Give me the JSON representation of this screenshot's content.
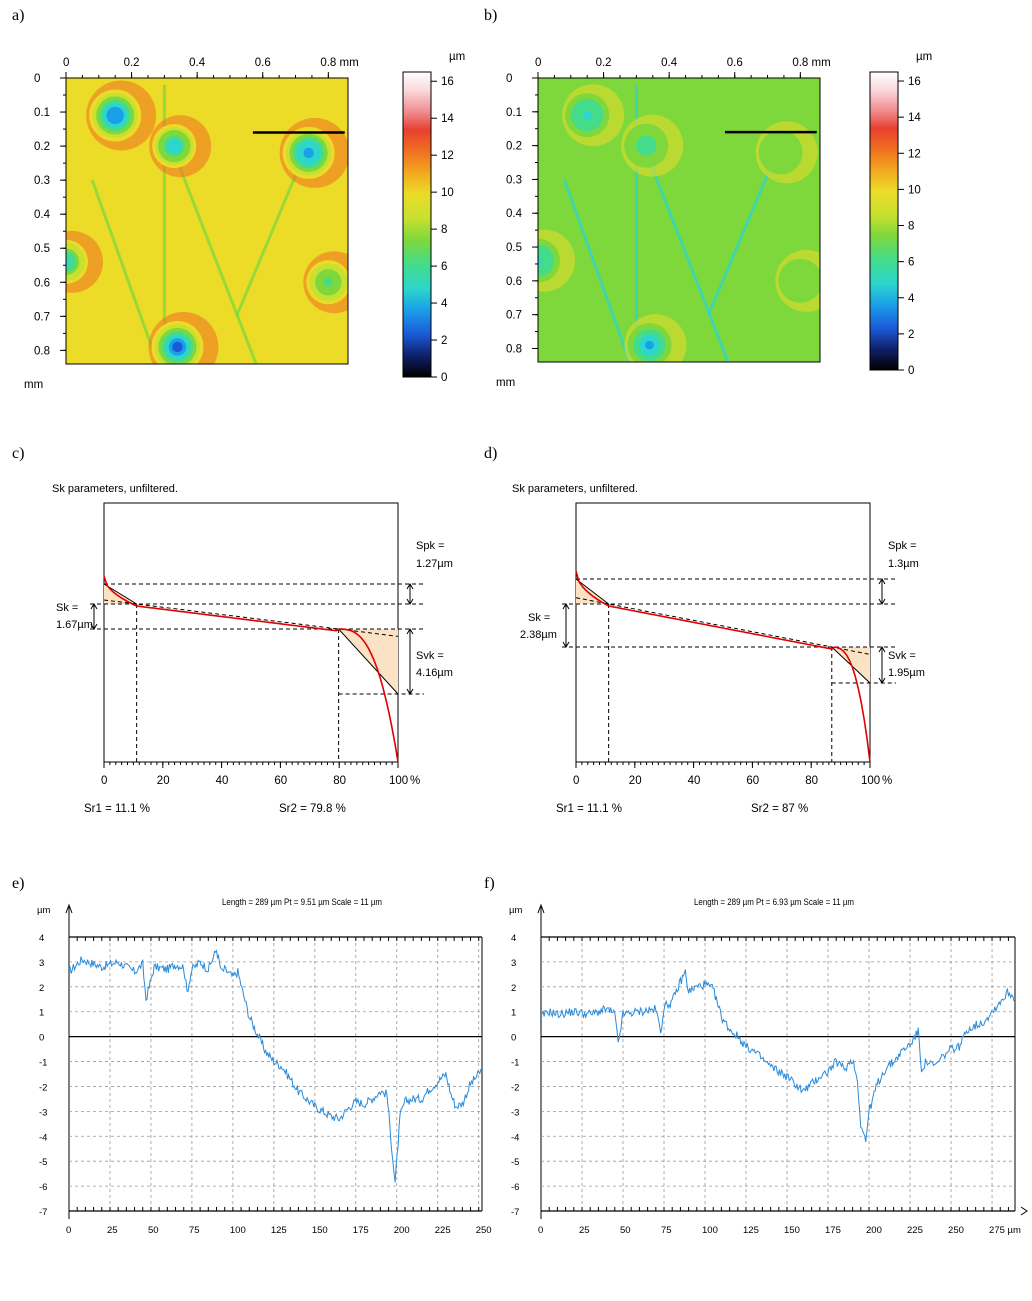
{
  "panel_labels": [
    "a)",
    "b)",
    "c)",
    "d)",
    "e)",
    "f)"
  ],
  "colors": {
    "map_colormap": [
      "#000000",
      "#10206a",
      "#1a5ad8",
      "#1aa0e8",
      "#2cd6cc",
      "#44dc8a",
      "#7ed83c",
      "#c8e030",
      "#ecdc28",
      "#f2b020",
      "#f07020",
      "#e84030",
      "#f08c90",
      "#fad8dc",
      "#ffffff"
    ],
    "profile_line": "#2a8ad8",
    "sk_curve": "#e00000",
    "sk_fill": "#fce2c4"
  },
  "chart_data": [
    {
      "id": "a",
      "type": "heatmap",
      "x_ticks": [
        "0",
        "0.2",
        "0.4",
        "0.6",
        "0.8 mm"
      ],
      "y_ticks": [
        "0",
        "0.1",
        "0.2",
        "0.3",
        "0.4",
        "0.5",
        "0.6",
        "0.7",
        "0.8"
      ],
      "y_unit": "mm",
      "colorbar": {
        "unit": "µm",
        "min": 0,
        "max": 16.5,
        "ticks": [
          "16",
          "14",
          "12",
          "10",
          "8",
          "6",
          "4",
          "2",
          "0"
        ]
      },
      "base_height_um": 9.0,
      "pits": [
        {
          "x": 0.33,
          "y": 0.2,
          "depth_um": 4.2
        },
        {
          "x": 0.74,
          "y": 0.22,
          "depth_um": 3.3
        },
        {
          "x": 0.34,
          "y": 0.79,
          "depth_um": 2.2
        },
        {
          "x": 0.0,
          "y": 0.54,
          "depth_um": 5.0
        },
        {
          "x": 0.8,
          "y": 0.6,
          "depth_um": 6.0
        },
        {
          "x": 0.15,
          "y": 0.11,
          "depth_um": 3.0
        }
      ],
      "profile_line_mm": {
        "x0": 0.57,
        "x1": 0.85,
        "y": 0.16
      }
    },
    {
      "id": "b",
      "type": "heatmap",
      "x_ticks": [
        "0",
        "0.2",
        "0.4",
        "0.6",
        "0.8 mm"
      ],
      "y_ticks": [
        "0",
        "0.1",
        "0.2",
        "0.3",
        "0.4",
        "0.5",
        "0.6",
        "0.7",
        "0.8"
      ],
      "y_unit": "mm",
      "colorbar": {
        "unit": "µm",
        "min": 0,
        "max": 16.5,
        "ticks": [
          "16",
          "14",
          "12",
          "10",
          "8",
          "6",
          "4",
          "2",
          "0"
        ]
      },
      "base_height_um": 7.0,
      "pits": [
        {
          "x": 0.33,
          "y": 0.2,
          "depth_um": 6.0
        },
        {
          "x": 0.74,
          "y": 0.22,
          "depth_um": 7.0
        },
        {
          "x": 0.34,
          "y": 0.79,
          "depth_um": 4.0
        },
        {
          "x": 0.0,
          "y": 0.54,
          "depth_um": 5.0
        },
        {
          "x": 0.8,
          "y": 0.6,
          "depth_um": 6.5
        },
        {
          "x": 0.15,
          "y": 0.11,
          "depth_um": 5.0
        }
      ],
      "profile_line_mm": {
        "x0": 0.57,
        "x1": 0.85,
        "y": 0.16
      }
    },
    {
      "id": "c",
      "type": "line",
      "title": "Sk parameters, unfiltered.",
      "x_ticks": [
        "0",
        "20",
        "40",
        "60",
        "80",
        "100"
      ],
      "x_unit": "%",
      "sk_label": "Sk =",
      "sk_value": "1.67µm",
      "spk_label": "Spk =",
      "spk_value": "1.27µm",
      "svk_label": "Svk =",
      "svk_value": "4.16µm",
      "sr1_text": "Sr1 = 11.1 %",
      "sr2_text": "Sr2 = 79.8 %",
      "sr1": 11.1,
      "sr2": 79.8
    },
    {
      "id": "d",
      "type": "line",
      "title": "Sk parameters, unfiltered.",
      "x_ticks": [
        "0",
        "20",
        "40",
        "60",
        "80",
        "100"
      ],
      "x_unit": "%",
      "sk_label": "Sk =",
      "sk_value": "2.38µm",
      "spk_label": "Spk =",
      "spk_value": "1.3µm",
      "svk_label": "Svk =",
      "svk_value": "1.95µm",
      "sr1_text": "Sr1 = 11.1 %",
      "sr2_text": "Sr2 = 87 %",
      "sr1": 11.1,
      "sr2": 87
    },
    {
      "id": "e",
      "type": "line",
      "title": "Length = 289 µm  Pt = 9.51 µm  Scale = 11 µm",
      "y_unit": "µm",
      "x_label": "µm",
      "x_ticks": [
        "0",
        "25",
        "50",
        "75",
        "100",
        "125",
        "150",
        "175",
        "200",
        "225",
        "250"
      ],
      "y_ticks": [
        "4",
        "3",
        "2",
        "1",
        "0",
        "-1",
        "-2",
        "-3",
        "-4",
        "-5",
        "-6",
        "-7"
      ],
      "xlim": [
        0,
        252
      ],
      "ylim": [
        -7,
        4
      ],
      "series": [
        {
          "x": [
            0,
            8,
            20,
            30,
            40,
            45,
            47,
            52,
            60,
            65,
            70,
            72,
            75,
            80,
            85,
            90,
            93,
            95,
            100,
            103,
            106,
            110,
            115,
            120,
            125,
            130,
            140,
            150,
            155,
            160,
            165,
            170,
            175,
            180,
            185,
            190,
            194,
            197,
            199,
            202,
            205,
            210,
            215,
            220,
            225,
            230,
            233,
            236,
            240,
            245,
            250,
            252
          ],
          "y": [
            2.6,
            3.1,
            2.8,
            3.0,
            2.6,
            2.9,
            1.5,
            2.8,
            2.7,
            2.9,
            2.8,
            1.8,
            2.7,
            3.0,
            2.7,
            3.5,
            2.6,
            2.7,
            2.4,
            2.6,
            1.8,
            0.8,
            0.1,
            -0.6,
            -1.0,
            -1.2,
            -2.2,
            -2.8,
            -3.0,
            -3.2,
            -3.3,
            -2.9,
            -2.6,
            -2.7,
            -2.5,
            -2.2,
            -2.3,
            -4.5,
            -5.9,
            -3.2,
            -2.6,
            -2.5,
            -2.5,
            -2.1,
            -1.8,
            -1.5,
            -2.3,
            -2.8,
            -2.7,
            -1.9,
            -1.5,
            -1.3
          ]
        }
      ]
    },
    {
      "id": "f",
      "type": "line",
      "title": "Length = 289 µm  Pt = 6.93 µm  Scale = 11 µm",
      "y_unit": "µm",
      "x_label": "µm",
      "x_ticks": [
        "0",
        "25",
        "50",
        "75",
        "100",
        "125",
        "150",
        "175",
        "200",
        "225",
        "250",
        "275 µm"
      ],
      "y_ticks": [
        "4",
        "3",
        "2",
        "1",
        "0",
        "-1",
        "-2",
        "-3",
        "-4",
        "-5",
        "-6",
        "-7"
      ],
      "xlim": [
        0,
        289
      ],
      "ylim": [
        -7,
        4
      ],
      "series": [
        {
          "x": [
            0,
            5,
            10,
            20,
            30,
            40,
            45,
            47,
            50,
            60,
            70,
            73,
            75,
            80,
            85,
            88,
            90,
            95,
            100,
            105,
            110,
            115,
            120,
            125,
            130,
            140,
            150,
            160,
            165,
            170,
            175,
            180,
            185,
            190,
            193,
            195,
            198,
            200,
            205,
            210,
            215,
            220,
            225,
            230,
            232,
            235,
            240,
            245,
            250,
            255,
            260,
            270,
            280,
            285,
            289
          ],
          "y": [
            0.8,
            1.0,
            0.9,
            1.0,
            0.9,
            1.1,
            0.9,
            -0.3,
            0.9,
            1.0,
            1.1,
            0.2,
            1.2,
            1.4,
            2.2,
            2.6,
            1.8,
            2.0,
            2.1,
            1.9,
            0.8,
            0.3,
            0.0,
            -0.4,
            -0.6,
            -1.2,
            -1.6,
            -2.2,
            -1.9,
            -1.6,
            -1.4,
            -1.0,
            -1.3,
            -0.9,
            -1.8,
            -3.5,
            -4.2,
            -3.0,
            -1.9,
            -1.3,
            -1.0,
            -0.6,
            -0.3,
            0.2,
            -1.3,
            -1.0,
            -1.2,
            -0.8,
            -0.5,
            -0.4,
            0.3,
            0.6,
            1.4,
            1.8,
            1.5
          ]
        }
      ]
    }
  ]
}
